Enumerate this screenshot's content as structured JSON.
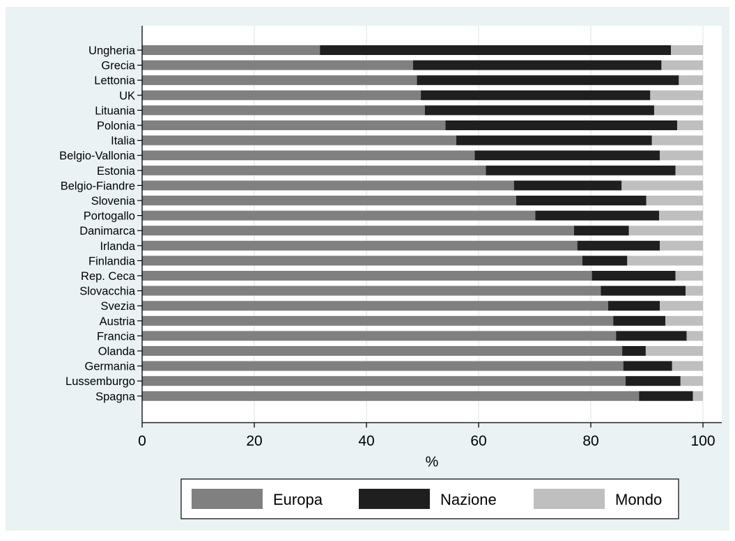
{
  "chart_data": {
    "type": "bar",
    "orientation": "horizontal",
    "stacked": true,
    "xlabel": "%",
    "xlim": [
      0,
      100
    ],
    "xticks": [
      0,
      20,
      40,
      60,
      80,
      100
    ],
    "grid": "vertical",
    "legend_position": "bottom",
    "categories": [
      "Ungheria",
      "Grecia",
      "Lettonia",
      "UK",
      "Lituania",
      "Polonia",
      "Italia",
      "Belgio-Vallonia",
      "Estonia",
      "Belgio-Fiandre",
      "Slovenia",
      "Portogallo",
      "Danimarca",
      "Irlanda",
      "Finlandia",
      "Rep. Ceca",
      "Slovacchia",
      "Svezia",
      "Austria",
      "Francia",
      "Olanda",
      "Germania",
      "Lussemburgo",
      "Spagna"
    ],
    "series": [
      {
        "name": "Europa",
        "color": "#808080",
        "values": [
          31.7,
          48.3,
          49.0,
          49.7,
          50.4,
          54.1,
          56.0,
          59.3,
          61.3,
          66.3,
          66.7,
          70.1,
          77.0,
          77.6,
          78.5,
          80.2,
          81.8,
          83.1,
          84.0,
          84.5,
          85.6,
          85.8,
          86.2,
          88.6
        ]
      },
      {
        "name": "Nazione",
        "color": "#1f1f1f",
        "values": [
          62.6,
          44.3,
          46.7,
          40.9,
          40.9,
          41.3,
          34.9,
          33.0,
          33.8,
          19.2,
          23.2,
          22.1,
          9.8,
          14.7,
          8.0,
          14.9,
          15.1,
          9.2,
          9.3,
          12.6,
          4.2,
          8.7,
          9.8,
          9.6
        ]
      },
      {
        "name": "Mondo",
        "color": "#bfbfbf",
        "values": [
          5.7,
          7.4,
          4.3,
          9.4,
          8.7,
          4.6,
          9.1,
          7.7,
          4.9,
          14.5,
          10.1,
          7.8,
          13.2,
          7.7,
          13.5,
          4.9,
          3.1,
          7.7,
          6.7,
          2.9,
          10.2,
          5.5,
          4.0,
          1.8
        ]
      }
    ]
  }
}
